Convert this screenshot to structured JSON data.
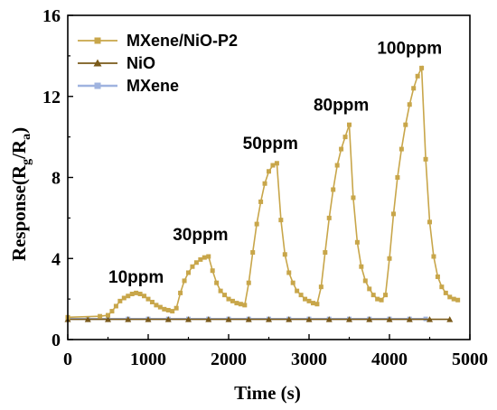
{
  "chart_data": {
    "type": "line",
    "title": "",
    "xlabel": "Time (s)",
    "ylabel_parts": {
      "main": "Response(R",
      "sub1": "g",
      "mid": "/R",
      "sub2": "a",
      "end": ")"
    },
    "xlim": [
      0,
      5000
    ],
    "ylim": [
      0,
      16
    ],
    "xticks": [
      0,
      1000,
      2000,
      3000,
      4000,
      5000
    ],
    "yticks": [
      0,
      4,
      8,
      12,
      16
    ],
    "legend_position": "top-left",
    "grid": false,
    "series": [
      {
        "name": "MXene/NiO-P2",
        "color": "#c8a64a",
        "marker": "square",
        "x": [
          0,
          400,
          500,
          550,
          600,
          650,
          700,
          750,
          800,
          850,
          900,
          950,
          1000,
          1050,
          1100,
          1150,
          1200,
          1250,
          1300,
          1350,
          1400,
          1450,
          1500,
          1550,
          1600,
          1650,
          1700,
          1750,
          1800,
          1850,
          1900,
          1950,
          2000,
          2050,
          2100,
          2150,
          2200,
          2250,
          2300,
          2350,
          2400,
          2450,
          2500,
          2550,
          2600,
          2650,
          2700,
          2750,
          2800,
          2850,
          2900,
          2950,
          3000,
          3050,
          3100,
          3150,
          3200,
          3250,
          3300,
          3350,
          3400,
          3450,
          3500,
          3550,
          3600,
          3650,
          3700,
          3750,
          3800,
          3850,
          3900,
          3950,
          4000,
          4050,
          4100,
          4150,
          4200,
          4250,
          4300,
          4350,
          4400,
          4450,
          4500,
          4550,
          4600,
          4650,
          4700,
          4750,
          4800,
          4850
        ],
        "y": [
          1.1,
          1.15,
          1.2,
          1.4,
          1.65,
          1.9,
          2.05,
          2.15,
          2.25,
          2.3,
          2.25,
          2.15,
          2.0,
          1.85,
          1.7,
          1.6,
          1.5,
          1.45,
          1.4,
          1.55,
          2.3,
          2.9,
          3.3,
          3.6,
          3.8,
          3.95,
          4.05,
          4.1,
          3.4,
          2.8,
          2.4,
          2.2,
          2.0,
          1.9,
          1.8,
          1.75,
          1.7,
          2.8,
          4.3,
          5.7,
          6.8,
          7.7,
          8.3,
          8.6,
          8.7,
          5.9,
          4.2,
          3.3,
          2.8,
          2.4,
          2.2,
          2.0,
          1.9,
          1.8,
          1.75,
          2.6,
          4.3,
          6.0,
          7.4,
          8.6,
          9.4,
          10.0,
          10.6,
          7.0,
          4.8,
          3.6,
          2.9,
          2.5,
          2.2,
          2.0,
          1.95,
          2.2,
          4.0,
          6.2,
          8.0,
          9.4,
          10.6,
          11.6,
          12.4,
          13.0,
          13.4,
          8.9,
          5.8,
          4.1,
          3.1,
          2.6,
          2.3,
          2.1,
          2.0,
          1.95
        ]
      },
      {
        "name": "NiO",
        "color": "#7a5a1a",
        "marker": "triangle",
        "x": [
          0,
          250,
          500,
          750,
          1000,
          1250,
          1500,
          1750,
          2000,
          2250,
          2500,
          2750,
          3000,
          3250,
          3500,
          3750,
          4000,
          4250,
          4500,
          4750
        ],
        "y": [
          1.0,
          1.0,
          1.0,
          1.0,
          1.0,
          1.0,
          1.0,
          1.0,
          1.0,
          1.0,
          1.0,
          1.0,
          1.0,
          1.0,
          1.0,
          1.0,
          1.0,
          1.0,
          1.0,
          1.0
        ]
      },
      {
        "name": "MXene",
        "color": "#9fb3df",
        "marker": "square",
        "x": [
          0,
          250,
          500,
          750,
          1000,
          1250,
          1500,
          1750,
          2000,
          2250,
          2500,
          2750,
          3000,
          3250,
          3500,
          3750,
          4000,
          4250,
          4450
        ],
        "y": [
          1.02,
          1.02,
          1.02,
          1.02,
          1.02,
          1.02,
          1.02,
          1.02,
          1.02,
          1.02,
          1.02,
          1.02,
          1.02,
          1.02,
          1.02,
          1.02,
          1.02,
          1.02,
          1.02
        ]
      }
    ],
    "annotations": [
      {
        "text": "10ppm",
        "x": 850,
        "y": 2.8
      },
      {
        "text": "30ppm",
        "x": 1650,
        "y": 4.9
      },
      {
        "text": "50ppm",
        "x": 2520,
        "y": 9.4
      },
      {
        "text": "80ppm",
        "x": 3400,
        "y": 11.3
      },
      {
        "text": "100ppm",
        "x": 4250,
        "y": 14.1
      }
    ]
  }
}
